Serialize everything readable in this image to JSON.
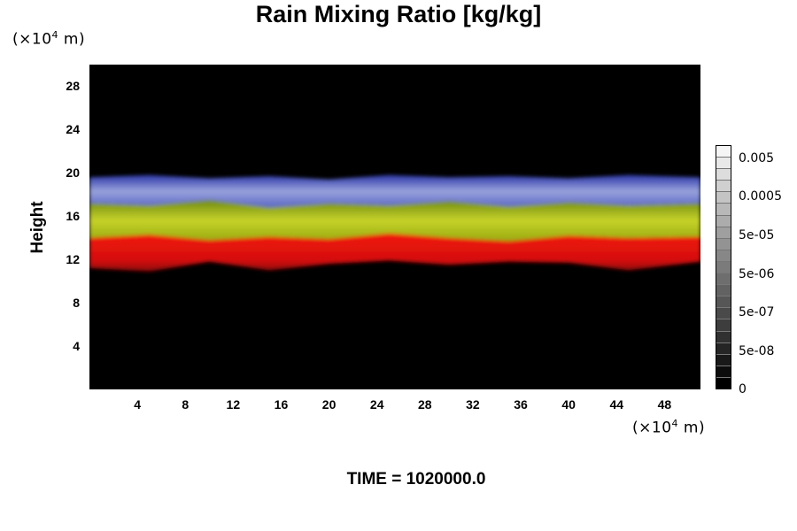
{
  "chart_data": {
    "type": "heatmap",
    "title": "Rain Mixing Ratio [kg/kg]",
    "xlabel": "",
    "ylabel": "Height",
    "x_unit": "(×10",
    "x_unit_exp": "4",
    "x_unit_tail": " m)",
    "y_unit": "(×10",
    "y_unit_exp": "4",
    "y_unit_tail": " m)",
    "xlim": [
      0,
      51
    ],
    "ylim": [
      0,
      30
    ],
    "x_ticks": [
      "4",
      "8",
      "12",
      "16",
      "20",
      "24",
      "28",
      "32",
      "36",
      "40",
      "44",
      "48"
    ],
    "y_ticks": [
      "4",
      "8",
      "12",
      "16",
      "20",
      "24",
      "28"
    ],
    "colorbar": {
      "labels": [
        "0.005",
        "0.0005",
        "5e-05",
        "5e-06",
        "5e-07",
        "5e-08",
        "0"
      ],
      "levels": 21
    },
    "layers": [
      {
        "band": "upper",
        "color": "#8a95d6",
        "bottom_km": [
          17.2,
          17.0,
          17.5,
          16.8,
          17.2,
          17.0,
          17.4,
          16.9,
          17.3,
          17.0,
          17.2
        ],
        "top_km": [
          19.6,
          19.8,
          19.5,
          19.7,
          19.4,
          19.8,
          19.6,
          19.7,
          19.5,
          19.8,
          19.6
        ]
      },
      {
        "band": "middle",
        "color": "#b8c41a",
        "bottom_km": [
          14.0,
          14.3,
          13.8,
          14.1,
          13.9,
          14.4,
          14.0,
          13.7,
          14.2,
          14.0,
          14.1
        ],
        "top_km": [
          17.2,
          17.0,
          17.5,
          16.8,
          17.2,
          17.0,
          17.4,
          16.9,
          17.3,
          17.0,
          17.2
        ]
      },
      {
        "band": "lower",
        "color": "#d41010",
        "bottom_km": [
          11.2,
          10.9,
          11.8,
          11.0,
          11.6,
          11.9,
          11.5,
          11.8,
          11.7,
          11.0,
          11.8
        ],
        "top_km": [
          14.0,
          14.3,
          13.8,
          14.1,
          13.9,
          14.4,
          14.0,
          13.7,
          14.2,
          14.0,
          14.1
        ]
      }
    ],
    "layer_x": [
      0,
      5,
      10,
      15,
      20,
      25,
      30,
      35,
      40,
      45,
      51
    ],
    "grid": false
  },
  "footer": {
    "time_label": "TIME = 1020000.0"
  },
  "colors": {
    "background": "#000000",
    "upper_band": "#8a95d6",
    "middle_band": "#b8c41a",
    "lower_band": "#d41010"
  }
}
